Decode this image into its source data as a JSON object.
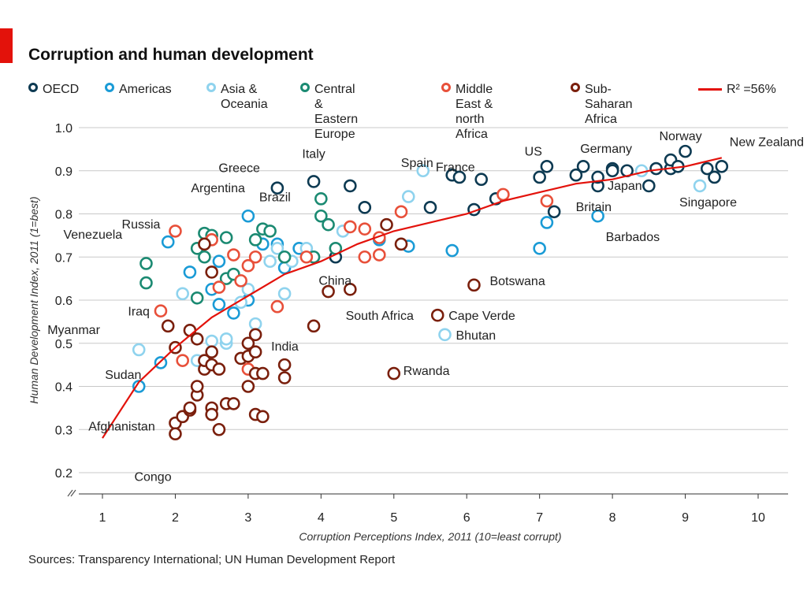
{
  "title": "Corruption and human development",
  "source": "Sources: Transparency International; UN Human Development Report",
  "legend": {
    "oecd": "OECD",
    "americas": "Americas",
    "asia": "Asia &\nOceania",
    "ceeurope": "Central &\nEastern Europe",
    "mena": "Middle East &\nnorth Africa",
    "ssafrica": "Sub-Saharan\nAfrica",
    "fit": "R² =56%"
  },
  "colors": {
    "OECD": "#0d3a52",
    "Americas": "#1a9bd6",
    "Asia": "#8fd3ee",
    "CEE": "#1b8a72",
    "MENA": "#e8503a",
    "SSA": "#7a1f0c",
    "fit": "#e3120b",
    "grid": "#c8c8c8",
    "accent": "#e3120b"
  },
  "chart_data": {
    "type": "scatter",
    "title": "Corruption and human development",
    "xlabel": "Corruption Perceptions Index, 2011 (10=least corrupt)",
    "ylabel": "Human Development Index, 2011 (1=best)",
    "xlim": [
      1,
      10
    ],
    "ylim": [
      0.2,
      1.0
    ],
    "xticks": [
      "1",
      "2",
      "3",
      "4",
      "5",
      "6",
      "7",
      "8",
      "9",
      "10"
    ],
    "yticks": [
      "0.2",
      "0.3",
      "0.4",
      "0.5",
      "0.6",
      "0.7",
      "0.8",
      "0.9",
      "1.0"
    ],
    "grid": true,
    "legend_position": "top",
    "fit": {
      "label": "R² =56%",
      "model": "logarithmic",
      "x": [
        1.0,
        1.5,
        2.0,
        2.5,
        3.0,
        3.5,
        4.0,
        4.5,
        5.0,
        5.5,
        6.0,
        6.5,
        7.0,
        7.5,
        8.0,
        8.5,
        9.0,
        9.5
      ],
      "y": [
        0.28,
        0.41,
        0.49,
        0.56,
        0.61,
        0.66,
        0.69,
        0.73,
        0.76,
        0.78,
        0.8,
        0.83,
        0.85,
        0.87,
        0.88,
        0.9,
        0.91,
        0.93
      ]
    },
    "series": [
      {
        "name": "OECD",
        "points": [
          [
            3.4,
            0.86
          ],
          [
            3.9,
            0.875
          ],
          [
            4.4,
            0.865
          ],
          [
            4.6,
            0.815
          ],
          [
            4.2,
            0.7
          ],
          [
            5.5,
            0.815
          ],
          [
            5.8,
            0.89
          ],
          [
            5.9,
            0.885
          ],
          [
            6.2,
            0.88
          ],
          [
            6.1,
            0.81
          ],
          [
            6.4,
            0.835
          ],
          [
            7.0,
            0.885
          ],
          [
            7.1,
            0.91
          ],
          [
            7.2,
            0.805
          ],
          [
            7.5,
            0.89
          ],
          [
            7.6,
            0.91
          ],
          [
            7.8,
            0.865
          ],
          [
            7.8,
            0.885
          ],
          [
            8.0,
            0.905
          ],
          [
            8.0,
            0.9
          ],
          [
            8.2,
            0.9
          ],
          [
            8.5,
            0.865
          ],
          [
            8.6,
            0.905
          ],
          [
            8.8,
            0.905
          ],
          [
            8.8,
            0.925
          ],
          [
            8.9,
            0.91
          ],
          [
            9.0,
            0.945
          ],
          [
            9.3,
            0.905
          ],
          [
            9.4,
            0.885
          ],
          [
            9.5,
            0.91
          ]
        ]
      },
      {
        "name": "Americas",
        "points": [
          [
            1.9,
            0.735
          ],
          [
            1.8,
            0.455
          ],
          [
            1.5,
            0.4
          ],
          [
            2.2,
            0.665
          ],
          [
            2.5,
            0.625
          ],
          [
            2.6,
            0.59
          ],
          [
            2.6,
            0.69
          ],
          [
            2.8,
            0.57
          ],
          [
            3.0,
            0.795
          ],
          [
            3.0,
            0.6
          ],
          [
            3.2,
            0.73
          ],
          [
            3.4,
            0.73
          ],
          [
            3.5,
            0.675
          ],
          [
            3.7,
            0.72
          ],
          [
            4.8,
            0.74
          ],
          [
            5.2,
            0.725
          ],
          [
            5.8,
            0.715
          ],
          [
            7.0,
            0.72
          ],
          [
            7.1,
            0.78
          ],
          [
            7.8,
            0.795
          ]
        ]
      },
      {
        "name": "Asia",
        "points": [
          [
            1.5,
            0.485
          ],
          [
            2.1,
            0.615
          ],
          [
            2.3,
            0.46
          ],
          [
            2.5,
            0.505
          ],
          [
            2.7,
            0.5
          ],
          [
            2.7,
            0.51
          ],
          [
            2.9,
            0.595
          ],
          [
            3.0,
            0.625
          ],
          [
            3.1,
            0.545
          ],
          [
            3.3,
            0.69
          ],
          [
            3.4,
            0.72
          ],
          [
            3.5,
            0.615
          ],
          [
            3.6,
            0.69
          ],
          [
            3.8,
            0.72
          ],
          [
            4.3,
            0.76
          ],
          [
            5.2,
            0.84
          ],
          [
            5.4,
            0.9
          ],
          [
            5.7,
            0.52
          ],
          [
            8.4,
            0.9
          ],
          [
            9.2,
            0.865
          ]
        ]
      },
      {
        "name": "Central & Eastern Europe",
        "points": [
          [
            1.6,
            0.685
          ],
          [
            1.6,
            0.64
          ],
          [
            2.3,
            0.605
          ],
          [
            2.3,
            0.72
          ],
          [
            2.4,
            0.7
          ],
          [
            2.4,
            0.755
          ],
          [
            2.5,
            0.75
          ],
          [
            2.7,
            0.745
          ],
          [
            2.7,
            0.65
          ],
          [
            2.8,
            0.66
          ],
          [
            3.1,
            0.74
          ],
          [
            3.2,
            0.765
          ],
          [
            3.3,
            0.76
          ],
          [
            3.5,
            0.7
          ],
          [
            4.0,
            0.835
          ],
          [
            4.0,
            0.795
          ],
          [
            4.1,
            0.775
          ],
          [
            3.9,
            0.7
          ],
          [
            4.2,
            0.72
          ]
        ]
      },
      {
        "name": "Middle East & north Africa",
        "points": [
          [
            1.8,
            0.575
          ],
          [
            2.0,
            0.76
          ],
          [
            2.1,
            0.46
          ],
          [
            2.5,
            0.74
          ],
          [
            2.6,
            0.63
          ],
          [
            2.8,
            0.705
          ],
          [
            2.9,
            0.645
          ],
          [
            3.0,
            0.68
          ],
          [
            3.0,
            0.44
          ],
          [
            3.1,
            0.7
          ],
          [
            3.4,
            0.585
          ],
          [
            3.8,
            0.7
          ],
          [
            4.4,
            0.77
          ],
          [
            4.6,
            0.7
          ],
          [
            4.6,
            0.765
          ],
          [
            4.8,
            0.705
          ],
          [
            4.8,
            0.745
          ],
          [
            5.1,
            0.805
          ],
          [
            6.5,
            0.845
          ],
          [
            7.1,
            0.83
          ]
        ]
      },
      {
        "name": "Sub-Saharan Africa",
        "points": [
          [
            1.9,
            0.54
          ],
          [
            2.0,
            0.49
          ],
          [
            2.0,
            0.315
          ],
          [
            2.0,
            0.29
          ],
          [
            2.1,
            0.33
          ],
          [
            2.2,
            0.53
          ],
          [
            2.2,
            0.345
          ],
          [
            2.2,
            0.35
          ],
          [
            2.3,
            0.51
          ],
          [
            2.3,
            0.38
          ],
          [
            2.3,
            0.4
          ],
          [
            2.4,
            0.44
          ],
          [
            2.4,
            0.46
          ],
          [
            2.5,
            0.48
          ],
          [
            2.5,
            0.45
          ],
          [
            2.5,
            0.35
          ],
          [
            2.5,
            0.335
          ],
          [
            2.6,
            0.3
          ],
          [
            2.6,
            0.44
          ],
          [
            2.7,
            0.36
          ],
          [
            2.8,
            0.36
          ],
          [
            2.9,
            0.465
          ],
          [
            3.0,
            0.5
          ],
          [
            3.0,
            0.47
          ],
          [
            3.0,
            0.4
          ],
          [
            3.1,
            0.48
          ],
          [
            3.1,
            0.43
          ],
          [
            3.1,
            0.335
          ],
          [
            3.1,
            0.52
          ],
          [
            3.2,
            0.43
          ],
          [
            3.2,
            0.33
          ],
          [
            3.5,
            0.45
          ],
          [
            3.5,
            0.42
          ],
          [
            3.9,
            0.54
          ],
          [
            4.1,
            0.62
          ],
          [
            4.4,
            0.625
          ],
          [
            4.9,
            0.775
          ],
          [
            5.0,
            0.43
          ],
          [
            5.1,
            0.73
          ],
          [
            5.6,
            0.565
          ],
          [
            6.1,
            0.635
          ],
          [
            2.5,
            0.665
          ],
          [
            2.4,
            0.73
          ]
        ]
      }
    ],
    "annotations": [
      {
        "text": "Spain",
        "x": 5.8,
        "y": 0.89
      },
      {
        "text": "France",
        "x": 6.2,
        "y": 0.88
      },
      {
        "text": "US",
        "x": 7.1,
        "y": 0.91
      },
      {
        "text": "Germany",
        "x": 8.0,
        "y": 0.905
      },
      {
        "text": "Norway",
        "x": 9.0,
        "y": 0.945
      },
      {
        "text": "New Zealand",
        "x": 9.5,
        "y": 0.91
      },
      {
        "text": "Italy",
        "x": 3.9,
        "y": 0.875
      },
      {
        "text": "Greece",
        "x": 3.4,
        "y": 0.86
      },
      {
        "text": "Argentina",
        "x": 3.0,
        "y": 0.795
      },
      {
        "text": "Russia",
        "x": 2.4,
        "y": 0.755
      },
      {
        "text": "Brazil",
        "x": 3.8,
        "y": 0.72
      },
      {
        "text": "Venezuela",
        "x": 1.9,
        "y": 0.735
      },
      {
        "text": "China",
        "x": 3.6,
        "y": 0.69
      },
      {
        "text": "Britain",
        "x": 7.8,
        "y": 0.865
      },
      {
        "text": "Japan",
        "x": 8.0,
        "y": 0.9
      },
      {
        "text": "Singapore",
        "x": 9.2,
        "y": 0.865
      },
      {
        "text": "Barbados",
        "x": 7.8,
        "y": 0.795
      },
      {
        "text": "Botswana",
        "x": 6.1,
        "y": 0.635
      },
      {
        "text": "Iraq",
        "x": 1.8,
        "y": 0.575
      },
      {
        "text": "India",
        "x": 3.1,
        "y": 0.545
      },
      {
        "text": "South Africa",
        "x": 4.1,
        "y": 0.62
      },
      {
        "text": "Cape Verde",
        "x": 5.6,
        "y": 0.565
      },
      {
        "text": "Bhutan",
        "x": 5.7,
        "y": 0.52
      },
      {
        "text": "Myanmar",
        "x": 1.5,
        "y": 0.485
      },
      {
        "text": "Sudan",
        "x": 1.6,
        "y": 0.41
      },
      {
        "text": "Rwanda",
        "x": 5.0,
        "y": 0.43
      },
      {
        "text": "Afghanistan",
        "x": 1.5,
        "y": 0.4
      },
      {
        "text": "Congo",
        "x": 2.0,
        "y": 0.29
      }
    ]
  }
}
